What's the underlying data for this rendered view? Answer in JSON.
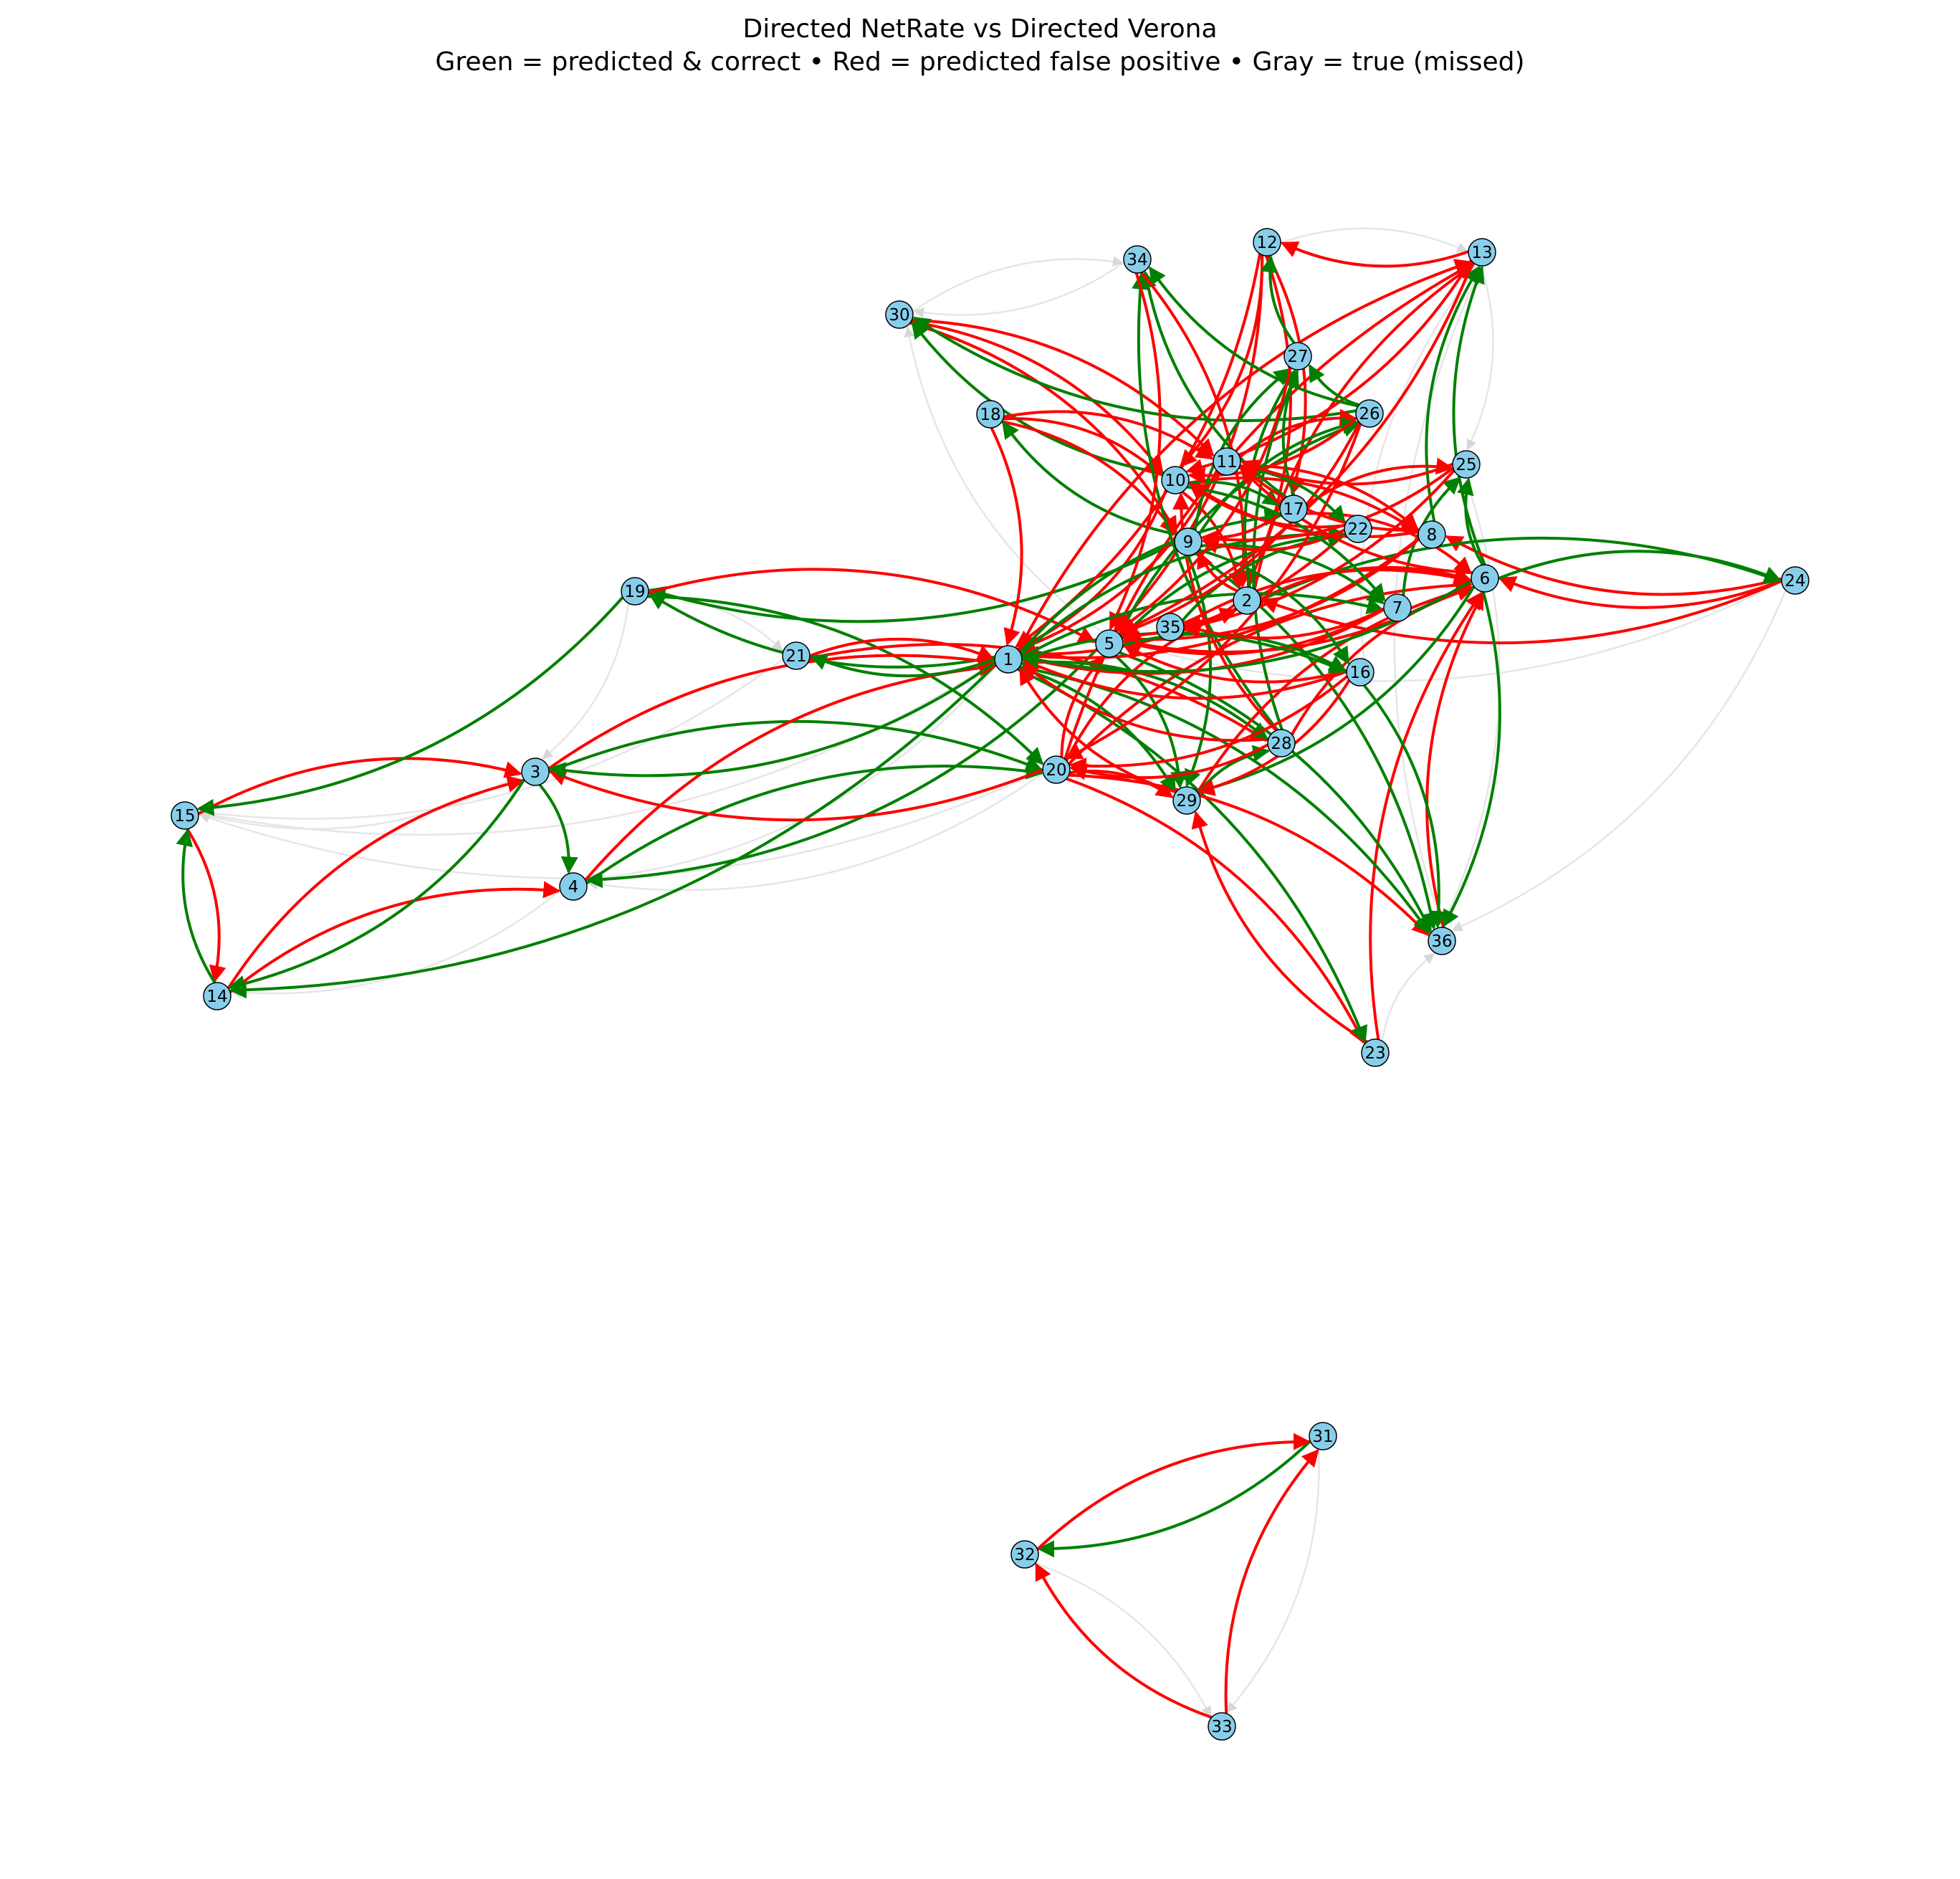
{
  "title": "Directed NetRate vs Directed Verona",
  "subtitle": "Green = predicted & correct • Red = predicted false positive • Gray = true (missed)",
  "colors": {
    "correct": "#008000",
    "false_positive": "#ff0000",
    "missed": "#e6e6e6",
    "node_fill": "#87ceeb",
    "node_stroke": "#000000"
  },
  "nodes": [
    {
      "id": "1",
      "label": "1"
    },
    {
      "id": "2",
      "label": "2"
    },
    {
      "id": "3",
      "label": "3"
    },
    {
      "id": "4",
      "label": "4"
    },
    {
      "id": "5",
      "label": "5"
    },
    {
      "id": "6",
      "label": "6"
    },
    {
      "id": "7",
      "label": "7"
    },
    {
      "id": "8",
      "label": "8"
    },
    {
      "id": "9",
      "label": "9"
    },
    {
      "id": "10",
      "label": "10"
    },
    {
      "id": "11",
      "label": "11"
    },
    {
      "id": "12",
      "label": "12"
    },
    {
      "id": "13",
      "label": "13"
    },
    {
      "id": "14",
      "label": "14"
    },
    {
      "id": "15",
      "label": "15"
    },
    {
      "id": "16",
      "label": "16"
    },
    {
      "id": "17",
      "label": "17"
    },
    {
      "id": "18",
      "label": "18"
    },
    {
      "id": "19",
      "label": "19"
    },
    {
      "id": "20",
      "label": "20"
    },
    {
      "id": "21",
      "label": "21"
    },
    {
      "id": "22",
      "label": "22"
    },
    {
      "id": "23",
      "label": "23"
    },
    {
      "id": "24",
      "label": "24"
    },
    {
      "id": "25",
      "label": "25"
    },
    {
      "id": "26",
      "label": "26"
    },
    {
      "id": "27",
      "label": "27"
    },
    {
      "id": "28",
      "label": "28"
    },
    {
      "id": "29",
      "label": "29"
    },
    {
      "id": "30",
      "label": "30"
    },
    {
      "id": "31",
      "label": "31"
    },
    {
      "id": "32",
      "label": "32"
    },
    {
      "id": "33",
      "label": "33"
    },
    {
      "id": "34",
      "label": "34"
    },
    {
      "id": "35",
      "label": "35"
    },
    {
      "id": "36",
      "label": "36"
    }
  ],
  "edges": [
    {
      "from": "31",
      "to": "32",
      "status": "correct"
    },
    {
      "from": "32",
      "to": "31",
      "status": "false_positive"
    },
    {
      "from": "33",
      "to": "32",
      "status": "false_positive"
    },
    {
      "from": "33",
      "to": "31",
      "status": "false_positive"
    },
    {
      "from": "32",
      "to": "33",
      "status": "missed"
    },
    {
      "from": "31",
      "to": "33",
      "status": "missed"
    },
    {
      "from": "15",
      "to": "14",
      "status": "false_positive"
    },
    {
      "from": "14",
      "to": "15",
      "status": "correct"
    },
    {
      "from": "15",
      "to": "3",
      "status": "false_positive"
    },
    {
      "from": "14",
      "to": "3",
      "status": "false_positive"
    },
    {
      "from": "14",
      "to": "4",
      "status": "false_positive"
    },
    {
      "from": "3",
      "to": "4",
      "status": "correct"
    },
    {
      "from": "3",
      "to": "14",
      "status": "correct"
    },
    {
      "from": "1",
      "to": "14",
      "status": "correct"
    },
    {
      "from": "1",
      "to": "15",
      "status": "missed"
    },
    {
      "from": "19",
      "to": "15",
      "status": "correct"
    },
    {
      "from": "1",
      "to": "19",
      "status": "correct"
    },
    {
      "from": "9",
      "to": "19",
      "status": "correct"
    },
    {
      "from": "19",
      "to": "20",
      "status": "correct"
    },
    {
      "from": "19",
      "to": "5",
      "status": "false_positive"
    },
    {
      "from": "3",
      "to": "1",
      "status": "false_positive"
    },
    {
      "from": "3",
      "to": "20",
      "status": "correct"
    },
    {
      "from": "4",
      "to": "1",
      "status": "false_positive"
    },
    {
      "from": "4",
      "to": "20",
      "status": "correct"
    },
    {
      "from": "5",
      "to": "4",
      "status": "correct"
    },
    {
      "from": "20",
      "to": "3",
      "status": "false_positive"
    },
    {
      "from": "1",
      "to": "3",
      "status": "correct"
    },
    {
      "from": "21",
      "to": "1",
      "status": "false_positive"
    },
    {
      "from": "21",
      "to": "28",
      "status": "false_positive"
    },
    {
      "from": "1",
      "to": "21",
      "status": "correct"
    },
    {
      "from": "30",
      "to": "10",
      "status": "false_positive"
    },
    {
      "from": "30",
      "to": "9",
      "status": "false_positive"
    },
    {
      "from": "30",
      "to": "11",
      "status": "false_positive"
    },
    {
      "from": "26",
      "to": "30",
      "status": "correct"
    },
    {
      "from": "10",
      "to": "30",
      "status": "correct"
    },
    {
      "from": "18",
      "to": "10",
      "status": "false_positive"
    },
    {
      "from": "18",
      "to": "11",
      "status": "false_positive"
    },
    {
      "from": "18",
      "to": "1",
      "status": "false_positive"
    },
    {
      "from": "18",
      "to": "9",
      "status": "false_positive"
    },
    {
      "from": "9",
      "to": "18",
      "status": "correct"
    },
    {
      "from": "12",
      "to": "1",
      "status": "false_positive"
    },
    {
      "from": "12",
      "to": "10",
      "status": "false_positive"
    },
    {
      "from": "12",
      "to": "5",
      "status": "false_positive"
    },
    {
      "from": "12",
      "to": "17",
      "status": "false_positive"
    },
    {
      "from": "12",
      "to": "2",
      "status": "false_positive"
    },
    {
      "from": "13",
      "to": "12",
      "status": "false_positive"
    },
    {
      "from": "13",
      "to": "10",
      "status": "false_positive"
    },
    {
      "from": "27",
      "to": "12",
      "status": "correct"
    },
    {
      "from": "6",
      "to": "13",
      "status": "correct"
    },
    {
      "from": "8",
      "to": "13",
      "status": "correct"
    },
    {
      "from": "20",
      "to": "13",
      "status": "false_positive"
    },
    {
      "from": "2",
      "to": "13",
      "status": "false_positive"
    },
    {
      "from": "1",
      "to": "13",
      "status": "false_positive"
    },
    {
      "from": "17",
      "to": "34",
      "status": "correct"
    },
    {
      "from": "26",
      "to": "34",
      "status": "correct"
    },
    {
      "from": "28",
      "to": "34",
      "status": "correct"
    },
    {
      "from": "34",
      "to": "5",
      "status": "false_positive"
    },
    {
      "from": "34",
      "to": "2",
      "status": "false_positive"
    },
    {
      "from": "24",
      "to": "6",
      "status": "false_positive"
    },
    {
      "from": "24",
      "to": "8",
      "status": "false_positive"
    },
    {
      "from": "24",
      "to": "2",
      "status": "false_positive"
    },
    {
      "from": "6",
      "to": "24",
      "status": "correct"
    },
    {
      "from": "2",
      "to": "24",
      "status": "correct"
    },
    {
      "from": "23",
      "to": "6",
      "status": "false_positive"
    },
    {
      "from": "23",
      "to": "29",
      "status": "false_positive"
    },
    {
      "from": "20",
      "to": "23",
      "status": "false_positive"
    },
    {
      "from": "1",
      "to": "23",
      "status": "correct"
    },
    {
      "from": "20",
      "to": "36",
      "status": "false_positive"
    },
    {
      "from": "20",
      "to": "29",
      "status": "false_positive"
    },
    {
      "from": "20",
      "to": "6",
      "status": "false_positive"
    },
    {
      "from": "20",
      "to": "2",
      "status": "false_positive"
    },
    {
      "from": "20",
      "to": "5",
      "status": "false_positive"
    },
    {
      "from": "36",
      "to": "6",
      "status": "false_positive"
    },
    {
      "from": "1",
      "to": "36",
      "status": "correct"
    },
    {
      "from": "5",
      "to": "36",
      "status": "correct"
    },
    {
      "from": "9",
      "to": "36",
      "status": "correct"
    },
    {
      "from": "16",
      "to": "36",
      "status": "correct"
    },
    {
      "from": "1",
      "to": "29",
      "status": "correct"
    },
    {
      "from": "5",
      "to": "29",
      "status": "correct"
    },
    {
      "from": "9",
      "to": "29",
      "status": "correct"
    },
    {
      "from": "28",
      "to": "1",
      "status": "false_positive"
    },
    {
      "from": "28",
      "to": "6",
      "status": "false_positive"
    },
    {
      "from": "28",
      "to": "10",
      "status": "false_positive"
    },
    {
      "from": "1",
      "to": "28",
      "status": "correct"
    },
    {
      "from": "29",
      "to": "1",
      "status": "false_positive"
    },
    {
      "from": "29",
      "to": "6",
      "status": "false_positive"
    },
    {
      "from": "29",
      "to": "28",
      "status": "correct"
    },
    {
      "from": "10",
      "to": "1",
      "status": "false_positive"
    },
    {
      "from": "11",
      "to": "1",
      "status": "false_positive"
    },
    {
      "from": "10",
      "to": "2",
      "status": "false_positive"
    },
    {
      "from": "11",
      "to": "8",
      "status": "false_positive"
    },
    {
      "from": "10",
      "to": "8",
      "status": "false_positive"
    },
    {
      "from": "11",
      "to": "26",
      "status": "false_positive"
    },
    {
      "from": "9",
      "to": "26",
      "status": "correct"
    },
    {
      "from": "5",
      "to": "26",
      "status": "correct"
    },
    {
      "from": "9",
      "to": "27",
      "status": "correct"
    },
    {
      "from": "17",
      "to": "27",
      "status": "correct"
    },
    {
      "from": "28",
      "to": "27",
      "status": "correct"
    },
    {
      "from": "2",
      "to": "27",
      "status": "correct"
    },
    {
      "from": "26",
      "to": "27",
      "status": "correct"
    },
    {
      "from": "7",
      "to": "25",
      "status": "correct"
    },
    {
      "from": "6",
      "to": "25",
      "status": "correct"
    },
    {
      "from": "17",
      "to": "25",
      "status": "false_positive"
    },
    {
      "from": "22",
      "to": "10",
      "status": "false_positive"
    },
    {
      "from": "22",
      "to": "1",
      "status": "false_positive"
    },
    {
      "from": "16",
      "to": "1",
      "status": "false_positive"
    },
    {
      "from": "16",
      "to": "5",
      "status": "false_positive"
    },
    {
      "from": "7",
      "to": "1",
      "status": "false_positive"
    },
    {
      "from": "7",
      "to": "5",
      "status": "false_positive"
    },
    {
      "from": "8",
      "to": "1",
      "status": "false_positive"
    },
    {
      "from": "8",
      "to": "5",
      "status": "false_positive"
    },
    {
      "from": "6",
      "to": "5",
      "status": "false_positive"
    },
    {
      "from": "6",
      "to": "1",
      "status": "correct"
    },
    {
      "from": "6",
      "to": "29",
      "status": "correct"
    },
    {
      "from": "6",
      "to": "36",
      "status": "correct"
    },
    {
      "from": "2",
      "to": "6",
      "status": "false_positive"
    },
    {
      "from": "17",
      "to": "6",
      "status": "false_positive"
    },
    {
      "from": "35",
      "to": "6",
      "status": "false_positive"
    },
    {
      "from": "35",
      "to": "22",
      "status": "correct"
    },
    {
      "from": "5",
      "to": "22",
      "status": "correct"
    },
    {
      "from": "1",
      "to": "22",
      "status": "correct"
    },
    {
      "from": "1",
      "to": "17",
      "status": "correct"
    },
    {
      "from": "1",
      "to": "16",
      "status": "correct"
    },
    {
      "from": "5",
      "to": "16",
      "status": "correct"
    },
    {
      "from": "9",
      "to": "16",
      "status": "correct"
    },
    {
      "from": "1",
      "to": "7",
      "status": "correct"
    },
    {
      "from": "9",
      "to": "7",
      "status": "correct"
    },
    {
      "from": "17",
      "to": "9",
      "status": "false_positive"
    },
    {
      "from": "22",
      "to": "9",
      "status": "false_positive"
    },
    {
      "from": "2",
      "to": "9",
      "status": "false_positive"
    },
    {
      "from": "2",
      "to": "35",
      "status": "false_positive"
    },
    {
      "from": "7",
      "to": "35",
      "status": "false_positive"
    },
    {
      "from": "16",
      "to": "29",
      "status": "false_positive"
    },
    {
      "from": "16",
      "to": "20",
      "status": "false_positive"
    },
    {
      "from": "28",
      "to": "20",
      "status": "false_positive"
    },
    {
      "from": "26",
      "to": "20",
      "status": "false_positive"
    },
    {
      "from": "26",
      "to": "5",
      "status": "false_positive"
    },
    {
      "from": "25",
      "to": "5",
      "status": "false_positive"
    },
    {
      "from": "25",
      "to": "9",
      "status": "false_positive"
    },
    {
      "from": "27",
      "to": "5",
      "status": "false_positive"
    },
    {
      "from": "13",
      "to": "5",
      "status": "false_positive"
    },
    {
      "from": "10",
      "to": "17",
      "status": "correct"
    },
    {
      "from": "11",
      "to": "22",
      "status": "correct"
    },
    {
      "from": "10",
      "to": "7",
      "status": "correct"
    },
    {
      "from": "8",
      "to": "11",
      "status": "false_positive"
    },
    {
      "from": "6",
      "to": "11",
      "status": "false_positive"
    },
    {
      "from": "8",
      "to": "10",
      "status": "false_positive"
    },
    {
      "from": "25",
      "to": "11",
      "status": "false_positive"
    },
    {
      "from": "26",
      "to": "10",
      "status": "false_positive"
    },
    {
      "from": "13",
      "to": "25",
      "status": "missed"
    },
    {
      "from": "12",
      "to": "13",
      "status": "missed"
    },
    {
      "from": "34",
      "to": "30",
      "status": "missed"
    },
    {
      "from": "30",
      "to": "34",
      "status": "missed"
    },
    {
      "from": "19",
      "to": "3",
      "status": "missed"
    },
    {
      "from": "21",
      "to": "15",
      "status": "missed"
    },
    {
      "from": "3",
      "to": "15",
      "status": "missed"
    },
    {
      "from": "4",
      "to": "14",
      "status": "missed"
    },
    {
      "from": "1",
      "to": "4",
      "status": "missed"
    },
    {
      "from": "20",
      "to": "4",
      "status": "missed"
    },
    {
      "from": "20",
      "to": "15",
      "status": "missed"
    },
    {
      "from": "24",
      "to": "5",
      "status": "missed"
    },
    {
      "from": "24",
      "to": "36",
      "status": "missed"
    },
    {
      "from": "23",
      "to": "36",
      "status": "missed"
    },
    {
      "from": "36",
      "to": "13",
      "status": "missed"
    },
    {
      "from": "16",
      "to": "13",
      "status": "missed"
    },
    {
      "from": "5",
      "to": "30",
      "status": "missed"
    },
    {
      "from": "19",
      "to": "21",
      "status": "missed"
    },
    {
      "from": "25",
      "to": "36",
      "status": "missed"
    }
  ]
}
